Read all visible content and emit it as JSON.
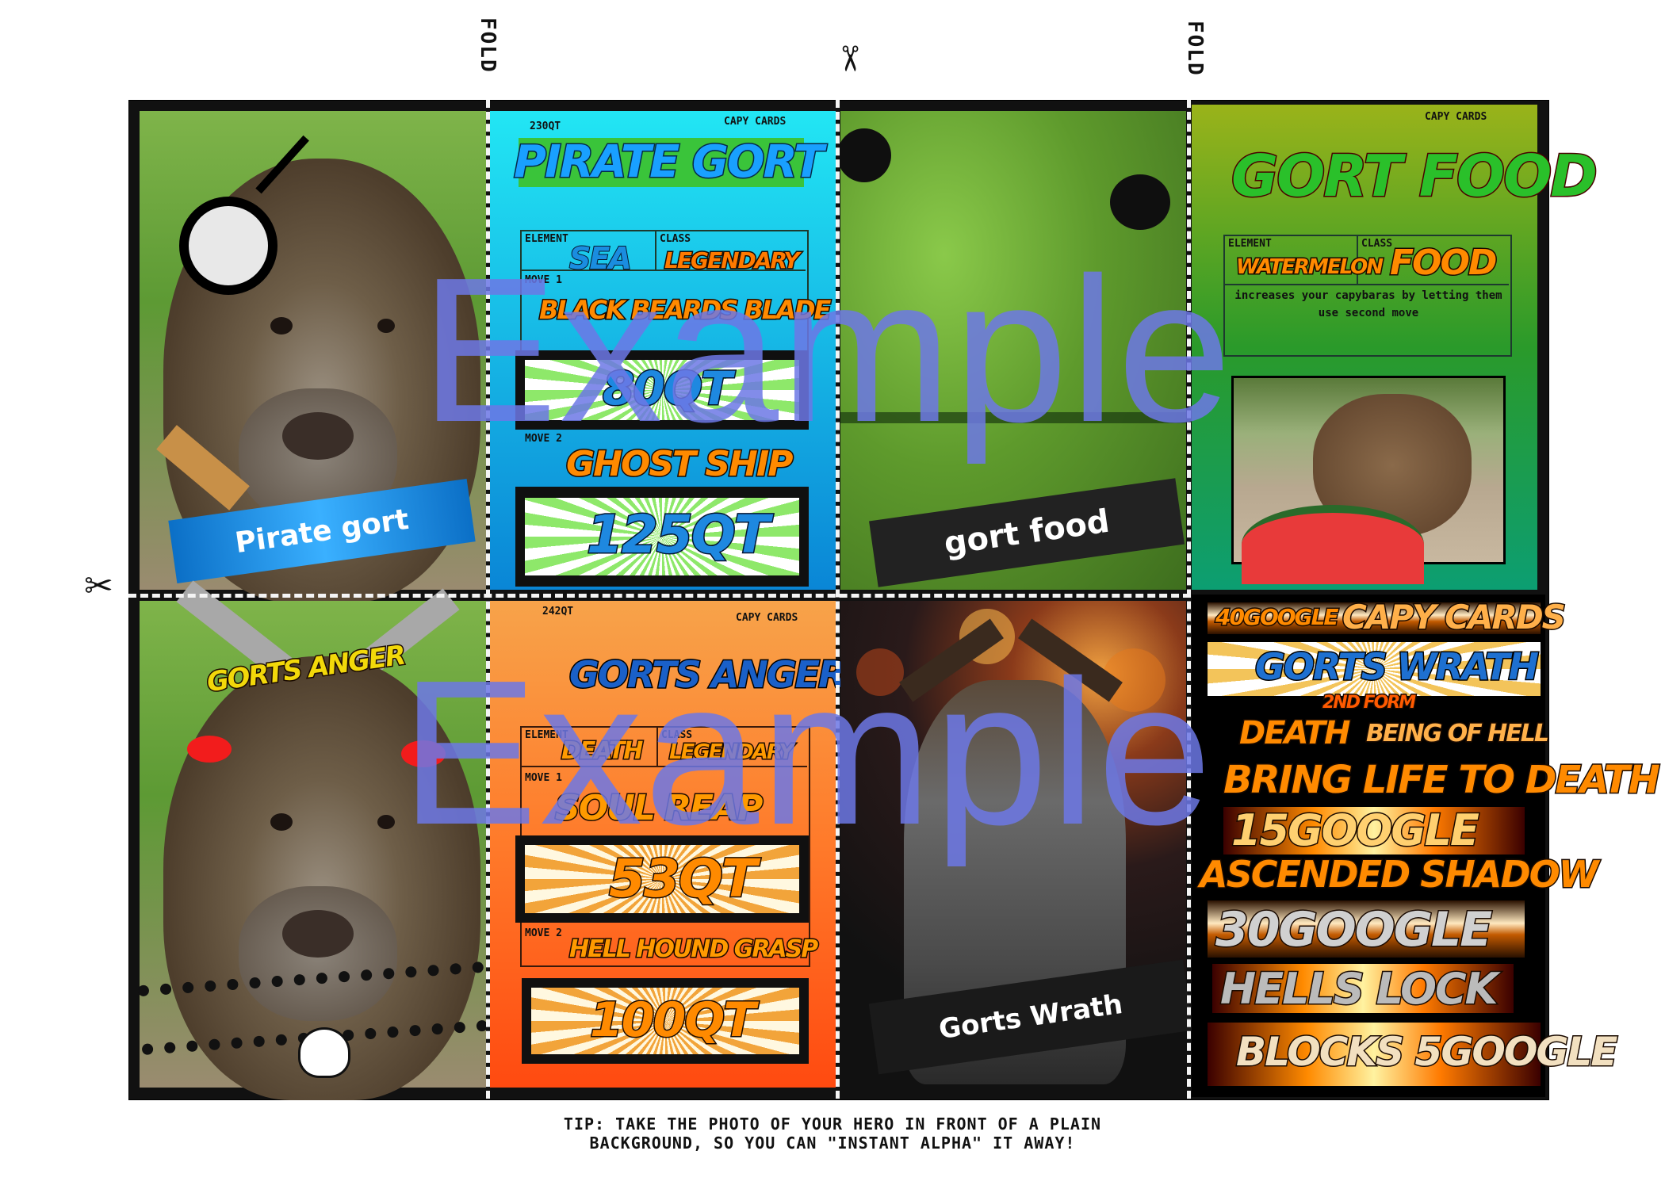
{
  "page": {
    "fold_label": "FOLD",
    "tip_line1": "TIP: TAKE THE PHOTO OF YOUR HERO IN FRONT OF A PLAIN",
    "tip_line2": "BACKGROUND, SO YOU CAN \"INSTANT ALPHA\" IT AWAY!",
    "watermark": "Example",
    "scissors": "✂"
  },
  "cards": {
    "pirate_front": {
      "banner": "Pirate gort"
    },
    "pirate_back": {
      "cost": "230QT",
      "brand": "CAPY CARDS",
      "title": "PIRATE GORT",
      "element_label": "ELEMENT",
      "element_value": "SEA",
      "class_label": "CLASS",
      "class_value": "LEGENDARY",
      "move1_label": "MOVE 1",
      "move1_name": "BLACK BEARDS BLADE",
      "move1_value": "80QT",
      "move2_label": "MOVE 2",
      "move2_name": "GHOST SHIP",
      "move2_value": "125QT"
    },
    "food_front": {
      "banner": "gort food"
    },
    "food_back": {
      "brand": "CAPY CARDS",
      "title": "GORT FOOD",
      "element_label": "ELEMENT",
      "element_value": "WATERMELON",
      "class_label": "CLASS",
      "class_value": "FOOD",
      "description": "increases your capybaras by letting them use second move"
    },
    "anger_front": {
      "title": "GORTS ANGER"
    },
    "anger_back": {
      "cost": "242QT",
      "brand": "CAPY CARDS",
      "title": "GORTS ANGER",
      "element_label": "ELEMENT",
      "element_value": "DEATH",
      "class_label": "CLASS",
      "class_value": "LEGENDARY",
      "move1_label": "MOVE 1",
      "move1_name": "SOUL REAP",
      "move1_value": "53QT",
      "move2_label": "MOVE 2",
      "move2_name": "HELL HOUND GRASP",
      "move2_value": "100QT"
    },
    "wrath_front": {
      "banner": "Gorts Wrath"
    },
    "wrath_back": {
      "cost": "40GOOGLE",
      "brand": "CAPY CARDS",
      "title": "GORTS WRATH",
      "subtitle": "2ND FORM",
      "element_value": "DEATH",
      "class_value": "BEING OF HELL",
      "move1_name": "BRING LIFE TO DEATH",
      "move1_value": "15GOOGLE",
      "move2_name": "ASCENDED SHADOW",
      "move2_value": "30GOOGLE",
      "move3_name": "HELLS LOCK",
      "move3_value": "BLOCKS 5GOOGLE"
    }
  },
  "colors": {
    "watermark": "#6d78e6",
    "pirate_back_top": "#22e6f4",
    "pirate_back_bottom": "#0a86d6",
    "food_back_top": "#9ab31a",
    "food_back_bottom": "#0c9e72",
    "anger_back_top": "#f7a34a",
    "anger_back_bottom": "#ff4a10"
  },
  "icons": [
    "scissors-icon",
    "eyepatch-icon",
    "skull-icon",
    "chain-icon",
    "horns-icon"
  ]
}
